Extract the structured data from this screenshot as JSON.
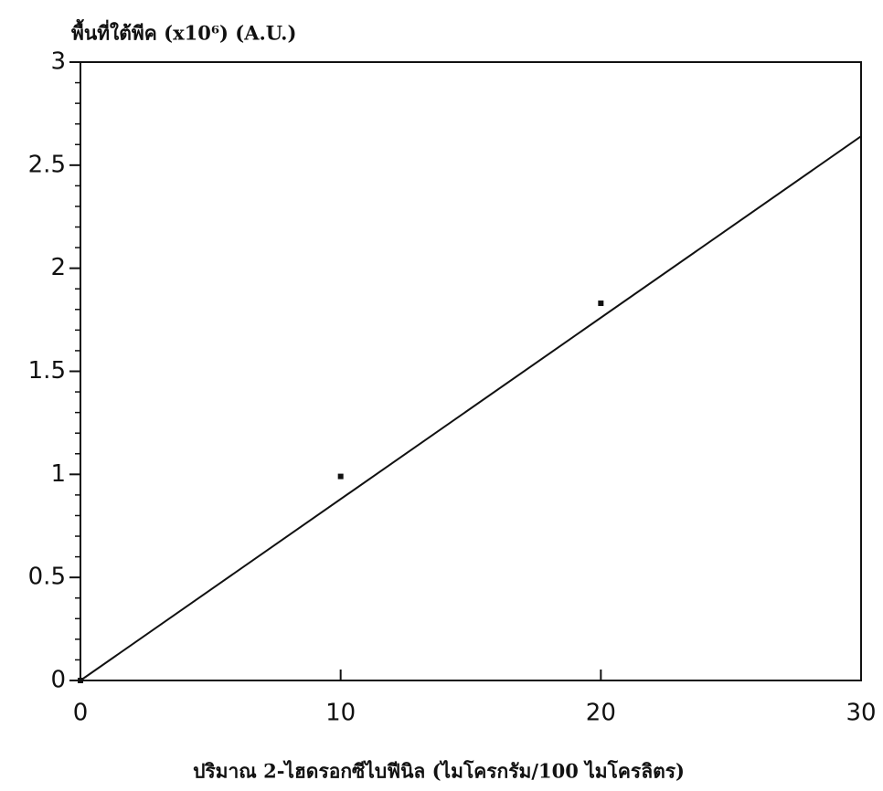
{
  "chart_data": {
    "type": "scatter",
    "y_label": "พื้นที่ใต้พีค (x10⁶) (A.U.)",
    "x_label": "ปริมาณ 2-ไฮดรอกซีไบฟีนิล (ไมโครกรัม/100 ไมโครลิตร)",
    "x": [
      0,
      10,
      20
    ],
    "values": [
      0,
      0.99,
      1.83
    ],
    "color": "#111111",
    "fit_line": {
      "x": [
        0,
        30
      ],
      "values": [
        0,
        2.64
      ]
    },
    "xlim": [
      0,
      30
    ],
    "xticks": [
      0,
      10,
      20,
      30
    ],
    "ylim": [
      0,
      3
    ],
    "yticks": [
      0,
      0.5,
      1,
      1.5,
      2,
      2.5,
      3
    ],
    "y_minor_ticks": [
      0.1,
      0.2,
      0.3,
      0.4,
      0.6,
      0.7,
      0.8,
      0.9,
      1.1,
      1.2,
      1.3,
      1.4,
      1.6,
      1.7,
      1.8,
      1.9,
      2.1,
      2.2,
      2.3,
      2.4,
      2.6,
      2.7,
      2.8,
      2.9
    ]
  }
}
